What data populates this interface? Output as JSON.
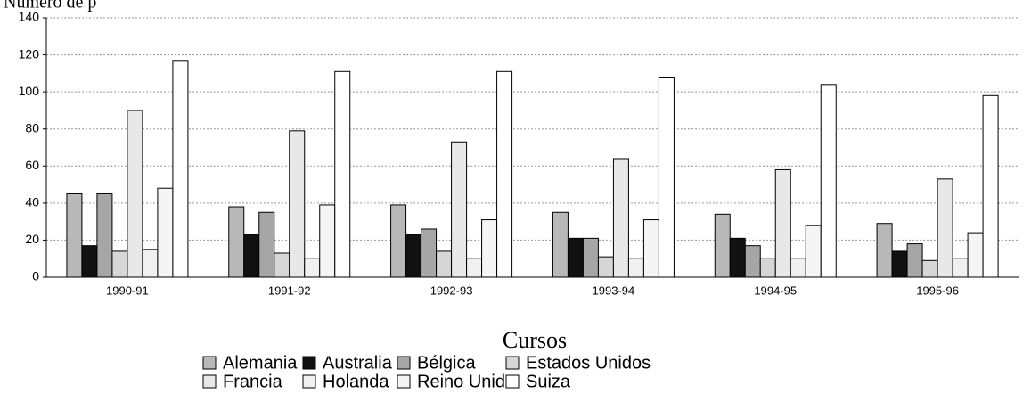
{
  "chart_data": {
    "type": "bar",
    "title": "Número de p",
    "x_label": "Cursos",
    "categories": [
      "1990-91",
      "1991-92",
      "1992-93",
      "1993-94",
      "1994-95",
      "1995-96"
    ],
    "series": [
      {
        "name": "Alemania",
        "color": "#b8b8b8",
        "values": [
          45,
          38,
          39,
          35,
          34,
          29
        ]
      },
      {
        "name": "Australia",
        "color": "#111111",
        "values": [
          17,
          23,
          23,
          21,
          21,
          14
        ]
      },
      {
        "name": "Bélgica",
        "color": "#a6a6a6",
        "values": [
          45,
          35,
          26,
          21,
          17,
          18
        ]
      },
      {
        "name": "Estados Unidos",
        "color": "#d6d6d6",
        "values": [
          14,
          13,
          14,
          11,
          10,
          9
        ]
      },
      {
        "name": "Francia",
        "color": "#e8e8e8",
        "values": [
          90,
          79,
          73,
          64,
          58,
          53
        ]
      },
      {
        "name": "Holanda",
        "color": "#f0f0f0",
        "values": [
          15,
          10,
          10,
          10,
          10,
          10
        ]
      },
      {
        "name": "Reino Unido",
        "color": "#f5f5f5",
        "values": [
          48,
          39,
          31,
          31,
          28,
          24
        ]
      },
      {
        "name": "Suiza",
        "color": "#ffffff",
        "values": [
          117,
          111,
          111,
          108,
          104,
          98
        ]
      }
    ],
    "ylim": [
      0,
      140
    ],
    "yticks": [
      0,
      20,
      40,
      60,
      80,
      100,
      120,
      140
    ],
    "grid": true
  }
}
